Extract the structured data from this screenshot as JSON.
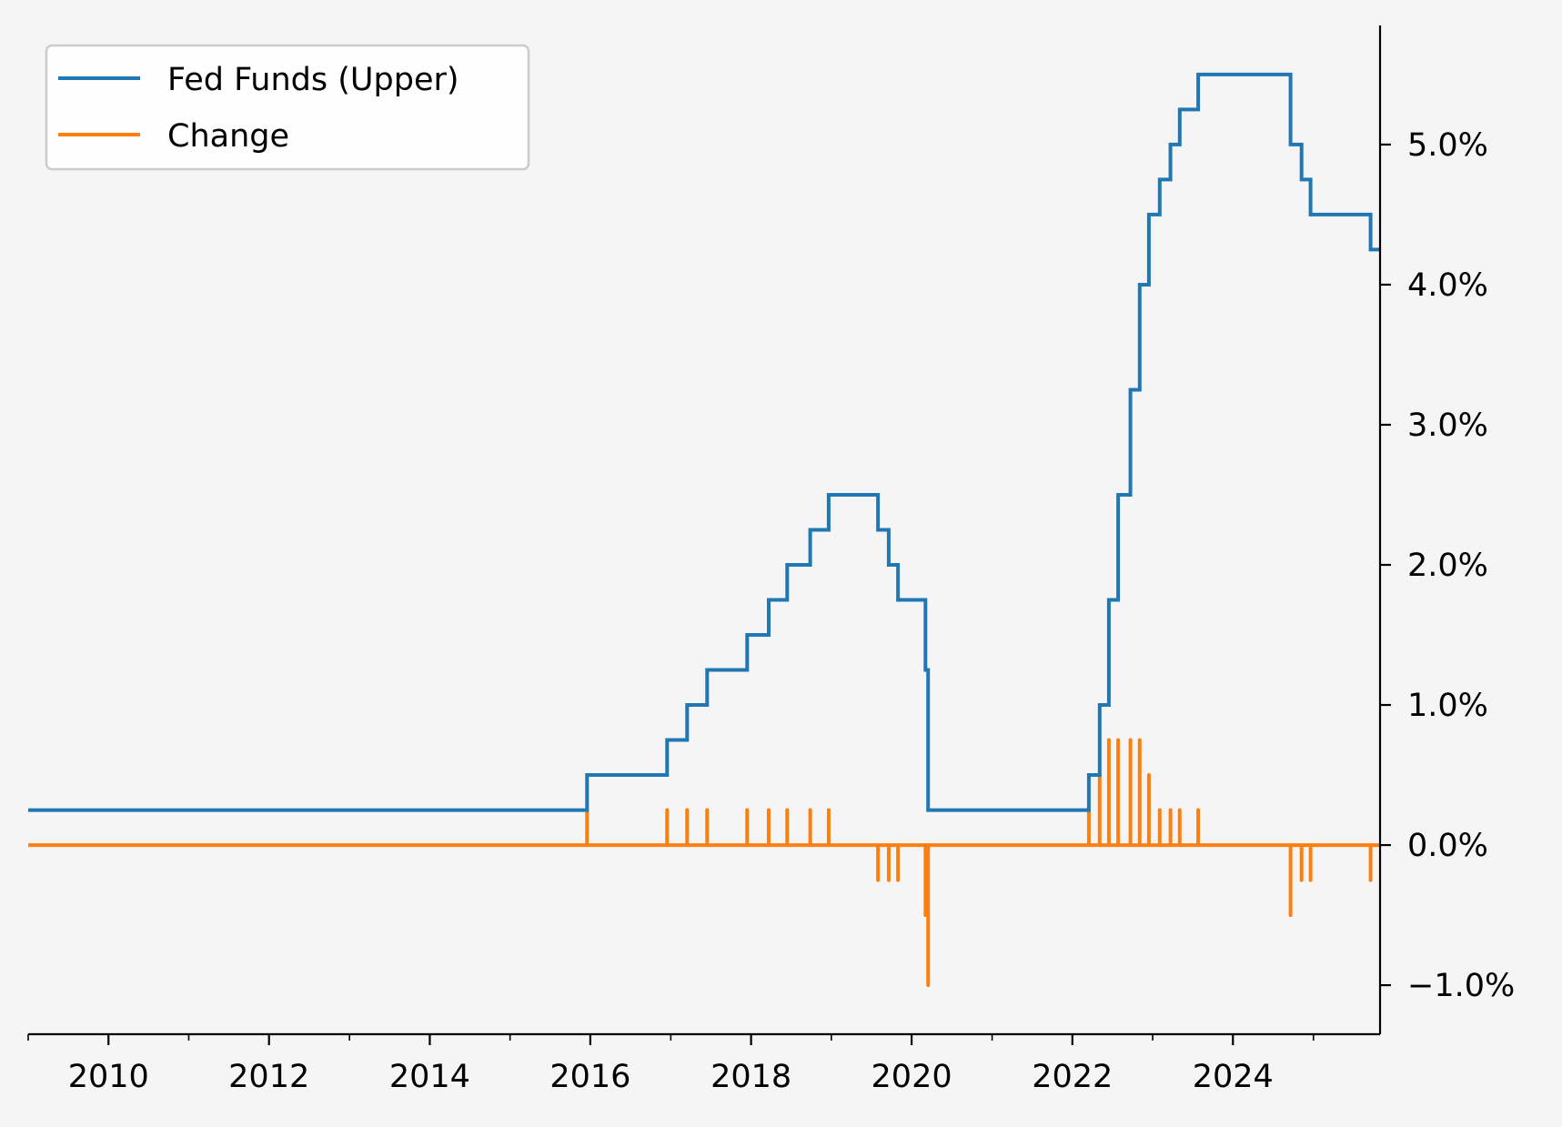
{
  "chart_data": {
    "type": "line",
    "colors": {
      "fed_funds": "#1f77b4",
      "change": "#ff7f0e"
    },
    "legend": {
      "placement": "upper-left",
      "entries": [
        {
          "label": "Fed Funds (Upper)",
          "series": "fed_funds"
        },
        {
          "label": "Change",
          "series": "change"
        }
      ]
    },
    "x_axis": {
      "type": "date",
      "range": [
        "2009-01-01",
        "2025-10-31"
      ],
      "major_ticks": [
        "2010-01-01",
        "2012-01-01",
        "2014-01-01",
        "2016-01-01",
        "2018-01-01",
        "2020-01-01",
        "2022-01-01",
        "2024-01-01"
      ],
      "tick_labels": [
        "2010",
        "2012",
        "2014",
        "2016",
        "2018",
        "2020",
        "2022",
        "2024"
      ]
    },
    "y_axis": {
      "position": "right",
      "unit": "%",
      "range": [
        -1.35,
        5.85
      ],
      "ticks": [
        -1.0,
        0.0,
        1.0,
        2.0,
        3.0,
        4.0,
        5.0
      ],
      "tick_labels": [
        "−1.0%",
        "0.0%",
        "1.0%",
        "2.0%",
        "3.0%",
        "4.0%",
        "5.0%"
      ]
    },
    "grid": false,
    "series": [
      {
        "name": "Fed Funds (Upper)",
        "style": "step",
        "points": [
          [
            "2009-01-01",
            0.25
          ],
          [
            "2015-12-17",
            0.5
          ],
          [
            "2016-12-15",
            0.75
          ],
          [
            "2017-03-16",
            1.0
          ],
          [
            "2017-06-15",
            1.25
          ],
          [
            "2017-12-14",
            1.5
          ],
          [
            "2018-03-22",
            1.75
          ],
          [
            "2018-06-14",
            2.0
          ],
          [
            "2018-09-27",
            2.25
          ],
          [
            "2018-12-20",
            2.5
          ],
          [
            "2019-08-01",
            2.25
          ],
          [
            "2019-09-19",
            2.0
          ],
          [
            "2019-10-31",
            1.75
          ],
          [
            "2020-03-04",
            1.25
          ],
          [
            "2020-03-16",
            0.25
          ],
          [
            "2022-03-17",
            0.5
          ],
          [
            "2022-05-05",
            1.0
          ],
          [
            "2022-06-16",
            1.75
          ],
          [
            "2022-07-28",
            2.5
          ],
          [
            "2022-09-22",
            3.25
          ],
          [
            "2022-11-03",
            4.0
          ],
          [
            "2022-12-15",
            4.5
          ],
          [
            "2023-02-02",
            4.75
          ],
          [
            "2023-03-23",
            5.0
          ],
          [
            "2023-05-04",
            5.25
          ],
          [
            "2023-07-27",
            5.5
          ],
          [
            "2024-09-19",
            5.0
          ],
          [
            "2024-11-08",
            4.75
          ],
          [
            "2024-12-19",
            4.5
          ],
          [
            "2025-09-18",
            4.25
          ],
          [
            "2025-10-31",
            4.25
          ]
        ]
      },
      {
        "name": "Change",
        "style": "spikes",
        "baseline": 0.0,
        "points": [
          [
            "2015-12-17",
            0.25
          ],
          [
            "2016-12-15",
            0.25
          ],
          [
            "2017-03-16",
            0.25
          ],
          [
            "2017-06-15",
            0.25
          ],
          [
            "2017-12-14",
            0.25
          ],
          [
            "2018-03-22",
            0.25
          ],
          [
            "2018-06-14",
            0.25
          ],
          [
            "2018-09-27",
            0.25
          ],
          [
            "2018-12-20",
            0.25
          ],
          [
            "2019-08-01",
            -0.25
          ],
          [
            "2019-09-19",
            -0.25
          ],
          [
            "2019-10-31",
            -0.25
          ],
          [
            "2020-03-04",
            -0.5
          ],
          [
            "2020-03-16",
            -1.0
          ],
          [
            "2022-03-17",
            0.25
          ],
          [
            "2022-05-05",
            0.5
          ],
          [
            "2022-06-16",
            0.75
          ],
          [
            "2022-07-28",
            0.75
          ],
          [
            "2022-09-22",
            0.75
          ],
          [
            "2022-11-03",
            0.75
          ],
          [
            "2022-12-15",
            0.5
          ],
          [
            "2023-02-02",
            0.25
          ],
          [
            "2023-03-23",
            0.25
          ],
          [
            "2023-05-04",
            0.25
          ],
          [
            "2023-07-27",
            0.25
          ],
          [
            "2024-09-19",
            -0.5
          ],
          [
            "2024-11-08",
            -0.25
          ],
          [
            "2024-12-19",
            -0.25
          ],
          [
            "2025-09-18",
            -0.25
          ]
        ]
      }
    ]
  }
}
